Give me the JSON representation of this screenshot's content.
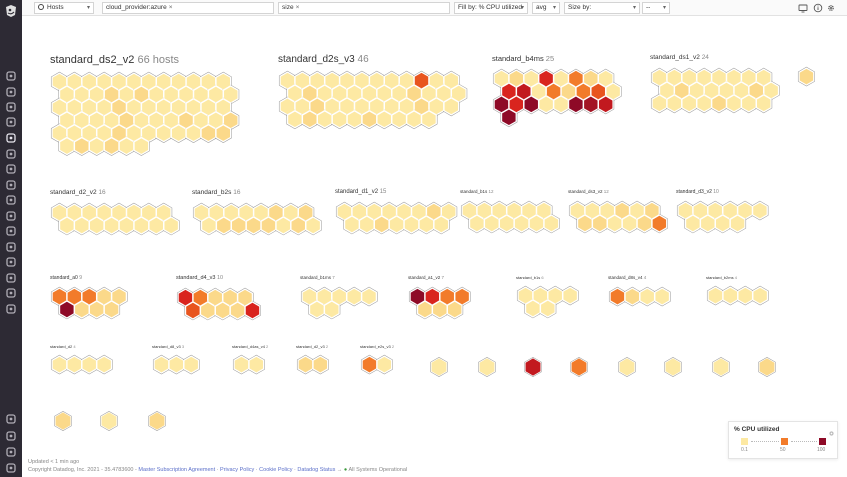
{
  "colors": {
    "accent": "#6c48b5",
    "sidebar_bg": "#2d2a34",
    "scale_low": "#fde9a3",
    "scale_mid": "#f27b2a",
    "scale_high": "#8e0a27"
  },
  "topbar": {
    "view_select": "Hosts",
    "filter_tags": [
      "cloud_provider:azure"
    ],
    "group_tags": [
      "size"
    ],
    "fill_by": "Fill by: % CPU utilized",
    "fill_agg": "avg",
    "size_by": "Size by:",
    "size_agg": "--",
    "icons": [
      "tv-icon",
      "info-icon",
      "gear-icon"
    ]
  },
  "sidebar_icons": [
    "search-icon",
    "binoculars-icon",
    "dashboard-icon",
    "monitor-icon",
    "infrastructure-icon",
    "alert-icon",
    "apm-icon",
    "notebook-icon",
    "security-icon",
    "integrations-icon",
    "rum-icon",
    "synthetics-icon",
    "logs-icon",
    "network-icon",
    "shield-icon",
    "star-icon",
    "chat-icon",
    "help-icon",
    "team-icon",
    "user-icon"
  ],
  "groups": [
    {
      "name": "standard_ds2_v2",
      "count": "66 hosts",
      "level": 0,
      "cols": 12,
      "r": 8.8,
      "fills": {
        "15": 1,
        "17": 1,
        "28": 1,
        "40": 1,
        "44": 1,
        "47": 1,
        "52": 1,
        "58": 1,
        "59": 1,
        "61": 1,
        "63": 1
      },
      "n": 66
    },
    {
      "name": "standard_d2s_v3",
      "count": "46",
      "level": 0,
      "cols": 12,
      "r": 8.8,
      "fills": {
        "9": 3,
        "13": 1,
        "20": 1,
        "26": 1,
        "33": 1,
        "37": 1,
        "41": 1
      },
      "n": 46
    },
    {
      "name": "standard_b4ms",
      "count": "25",
      "level": 1,
      "cols": 8,
      "r": 8.8,
      "fills": {
        "0": 0,
        "1": 1,
        "2": 0,
        "3": 4,
        "4": 0,
        "5": 2,
        "6": 1,
        "7": 0,
        "8": 4,
        "9": 5,
        "10": 0,
        "11": 2,
        "12": 1,
        "13": 2,
        "14": 3,
        "15": 0,
        "16": 5,
        "17": 3,
        "18": 5,
        "19": 0,
        "20": 0,
        "21": 0,
        "22": 1,
        "23": 0,
        "24": 1
      },
      "n": 25,
      "override": {
        "16": 6,
        "17": 4,
        "18": 6,
        "21": 6,
        "22": 7,
        "23": 5,
        "24": 6
      }
    },
    {
      "name": "standard_ds1_v2",
      "count": "24",
      "level": 1,
      "cols": 8,
      "r": 8.8,
      "fills": {
        "9": 1,
        "14": 1,
        "20": 1
      },
      "n": 24
    },
    {
      "name": "",
      "count": "",
      "level": 9,
      "cols": 1,
      "r": 8.8,
      "fills": {
        "0": 1
      },
      "n": 1
    },
    {
      "name": "standard_d2_v2",
      "count": "16",
      "level": 2,
      "cols": 8,
      "r": 8.8,
      "fills": {},
      "n": 16
    },
    {
      "name": "standard_b2s",
      "count": "16",
      "level": 2,
      "cols": 8,
      "r": 8.8,
      "fills": {
        "5": 1,
        "7": 1,
        "9": 1,
        "10": 1,
        "11": 1,
        "12": 1,
        "14": 1
      },
      "n": 16
    },
    {
      "name": "standard_d1_v2",
      "count": "15",
      "level": 2,
      "cols": 8,
      "r": 8.8,
      "fills": {
        "6": 1,
        "10": 1
      },
      "n": 15
    },
    {
      "name": "standard_b1s",
      "count": "12",
      "level": 3,
      "cols": 6,
      "r": 8.8,
      "fills": {},
      "n": 12
    },
    {
      "name": "standard_ds3_v2",
      "count": "12",
      "level": 3,
      "cols": 6,
      "r": 8.8,
      "fills": {
        "3": 1,
        "5": 1,
        "6": 1,
        "7": 1,
        "10": 1,
        "11": 2
      },
      "n": 12
    },
    {
      "name": "standard_d3_v2",
      "count": "10",
      "level": 3,
      "cols": 6,
      "r": 8.8,
      "fills": {},
      "n": 10
    },
    {
      "name": "standard_a0",
      "count": "9",
      "level": 4,
      "cols": 5,
      "r": 8.8,
      "fills": {
        "0": 2,
        "1": 2,
        "2": 2,
        "3": 1,
        "4": 1,
        "5": 6,
        "6": 1,
        "7": 1,
        "8": 1
      },
      "n": 9
    },
    {
      "name": "standard_d4_v3",
      "count": "10",
      "level": 4,
      "cols": 5,
      "r": 8.8,
      "fills": {
        "0": 4,
        "1": 2,
        "2": 1,
        "3": 1,
        "4": 1,
        "5": 3,
        "6": 1,
        "7": 1,
        "8": 1,
        "9": 4
      },
      "n": 10
    },
    {
      "name": "standard_b1ms",
      "count": "7",
      "level": 5,
      "cols": 5,
      "r": 8.8,
      "fills": {},
      "n": 7
    },
    {
      "name": "standard_a1_v2",
      "count": "7",
      "level": 5,
      "cols": 4,
      "r": 8.8,
      "fills": {
        "0": 6,
        "1": 4,
        "2": 2,
        "3": 2,
        "4": 1,
        "5": 1,
        "6": 1
      },
      "n": 7
    },
    {
      "name": "standard_b1s",
      "count": "6",
      "level": 6,
      "cols": 4,
      "r": 8.8,
      "fills": {},
      "n": 6
    },
    {
      "name": "standard_d8s_v4",
      "count": "4",
      "level": 6,
      "cols": 4,
      "r": 8.8,
      "fills": {
        "0": 2,
        "1": 1
      },
      "n": 4
    },
    {
      "name": "standard_b2ms",
      "count": "4",
      "level": 6,
      "cols": 4,
      "r": 8.8,
      "fills": {},
      "n": 4
    },
    {
      "name": "standard_d2",
      "count": "4",
      "level": 7,
      "cols": 4,
      "r": 8.8,
      "fills": {},
      "n": 4
    },
    {
      "name": "standard_d8_v3",
      "count": "3",
      "level": 7,
      "cols": 3,
      "r": 8.8,
      "fills": {},
      "n": 3
    },
    {
      "name": "standard_d4as_v4",
      "count": "2",
      "level": 7,
      "cols": 2,
      "r": 8.8,
      "fills": {},
      "n": 2
    },
    {
      "name": "standard_d2_v3",
      "count": "2",
      "level": 7,
      "cols": 2,
      "r": 8.8,
      "fills": {
        "0": 1,
        "1": 1
      },
      "n": 2
    },
    {
      "name": "standard_e2s_v3",
      "count": "2",
      "level": 7,
      "cols": 2,
      "r": 8.8,
      "fills": {
        "0": 2,
        "1": 0
      },
      "n": 2
    }
  ],
  "singles": [
    {
      "level": 8,
      "fill": 0
    },
    {
      "level": 8,
      "fill": 0
    },
    {
      "level": 8,
      "fill": 5
    },
    {
      "level": 8,
      "fill": 3
    },
    {
      "level": 8,
      "fill": 0
    },
    {
      "level": 8,
      "fill": 0
    },
    {
      "level": 8,
      "fill": 1
    },
    {
      "level": 10,
      "fill": 0
    },
    {
      "level": 10,
      "fill": 0
    },
    {
      "level": 10,
      "fill": 1
    }
  ],
  "legend": {
    "title": "% CPU utilized",
    "ticks": [
      "0.1",
      "50",
      "100"
    ]
  },
  "footer": {
    "updated": "Updated < 1 min ago",
    "copyright": "Copyright Datadog, Inc. 2021 - 35.4783600 -",
    "links": [
      "Master Subscription Agreement",
      "Privacy Policy",
      "Cookie Policy",
      "Datadog Status"
    ],
    "status": "All Systems Operational",
    "sep": "·",
    "arrow": "→"
  }
}
